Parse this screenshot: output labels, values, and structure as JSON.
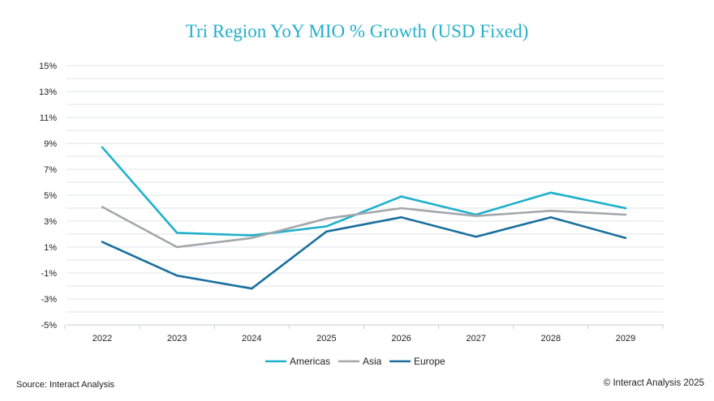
{
  "chart_data": {
    "type": "line",
    "title": "Tri Region YoY MIO % Growth (USD Fixed)",
    "xlabel": "",
    "ylabel": "",
    "categories": [
      "2022",
      "2023",
      "2024",
      "2025",
      "2026",
      "2027",
      "2028",
      "2029"
    ],
    "ylim": [
      -5,
      15
    ],
    "yticks": [
      -5,
      -3,
      -1,
      1,
      3,
      5,
      7,
      9,
      11,
      13,
      15
    ],
    "ytick_labels": [
      "-5%",
      "-3%",
      "-1%",
      "1%",
      "3%",
      "5%",
      "7%",
      "9%",
      "11%",
      "13%",
      "15%"
    ],
    "grid": true,
    "legend_position": "bottom",
    "series": [
      {
        "name": "Americas",
        "color": "#1fb0cc",
        "values": [
          8.7,
          2.1,
          1.9,
          2.6,
          4.9,
          3.5,
          5.2,
          4.0
        ]
      },
      {
        "name": "Asia",
        "color": "#a3a7ab",
        "values": [
          4.1,
          1.0,
          1.7,
          3.2,
          4.0,
          3.4,
          3.8,
          3.5
        ]
      },
      {
        "name": "Europe",
        "color": "#1a6f9d",
        "values": [
          1.4,
          -1.2,
          -2.2,
          2.2,
          3.3,
          1.8,
          3.3,
          1.7
        ]
      }
    ]
  },
  "footer": {
    "source": "Source: Interact Analysis",
    "copyright": "© Interact Analysis 2025"
  }
}
